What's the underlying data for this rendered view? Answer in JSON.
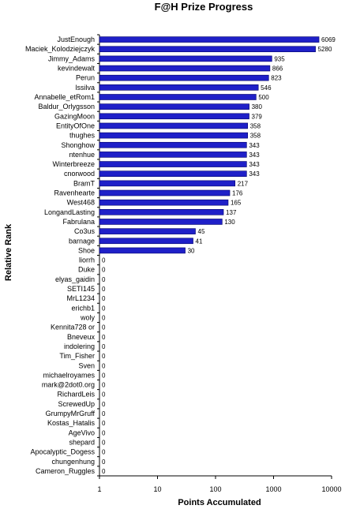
{
  "chart_data": {
    "type": "bar",
    "orientation": "horizontal",
    "title": "F@H Prize Progress",
    "xlabel": "Points Accumulated",
    "ylabel": "Relative Rank",
    "xscale": "log",
    "xlim": [
      1,
      10000
    ],
    "xticks": [
      "1",
      "10",
      "100",
      "1000",
      "10000"
    ],
    "grid": false,
    "bar_color": "#1f20c8",
    "categories": [
      "JustEnough",
      "Maciek_Kolodziejczyk",
      "Jimmy_Adams",
      "kevindewalt",
      "Perun",
      "lssilva",
      "Annabelle_etRom1",
      "Baldur_Orlygsson",
      "GazingMoon",
      "EntityOfOne",
      "thughes",
      "Shonghow",
      "ntenhue",
      "Winterbreeze",
      "cnorwood",
      "BramT",
      "Ravenhearte",
      "West468",
      "LongandLasting",
      "Fabrulana",
      "Co3us",
      "barnage",
      "Shoe",
      "liorrh",
      "Duke",
      "elyas_gaidin",
      "SETI145",
      "MrL1234",
      "erichb1",
      "woly",
      "Kennita728 or",
      "Bneveux",
      "indolering",
      "Tim_Fisher",
      "Sven",
      "michaelroyames",
      "mark@2dot0.org",
      "RichardLeis",
      "ScrewedUp",
      "GrumpyMrGruff",
      "Kostas_Hatalis",
      "AgeVivo",
      "shepard",
      "Apocalyptic_Dogess",
      "chungenhung",
      "Cameron_Ruggles"
    ],
    "values": [
      6069,
      5280,
      935,
      866,
      823,
      546,
      500,
      380,
      379,
      358,
      358,
      343,
      343,
      343,
      343,
      217,
      176,
      165,
      137,
      130,
      45,
      41,
      30,
      0,
      0,
      0,
      0,
      0,
      0,
      0,
      0,
      0,
      0,
      0,
      0,
      0,
      0,
      0,
      0,
      0,
      0,
      0,
      0,
      0,
      0,
      0
    ]
  }
}
